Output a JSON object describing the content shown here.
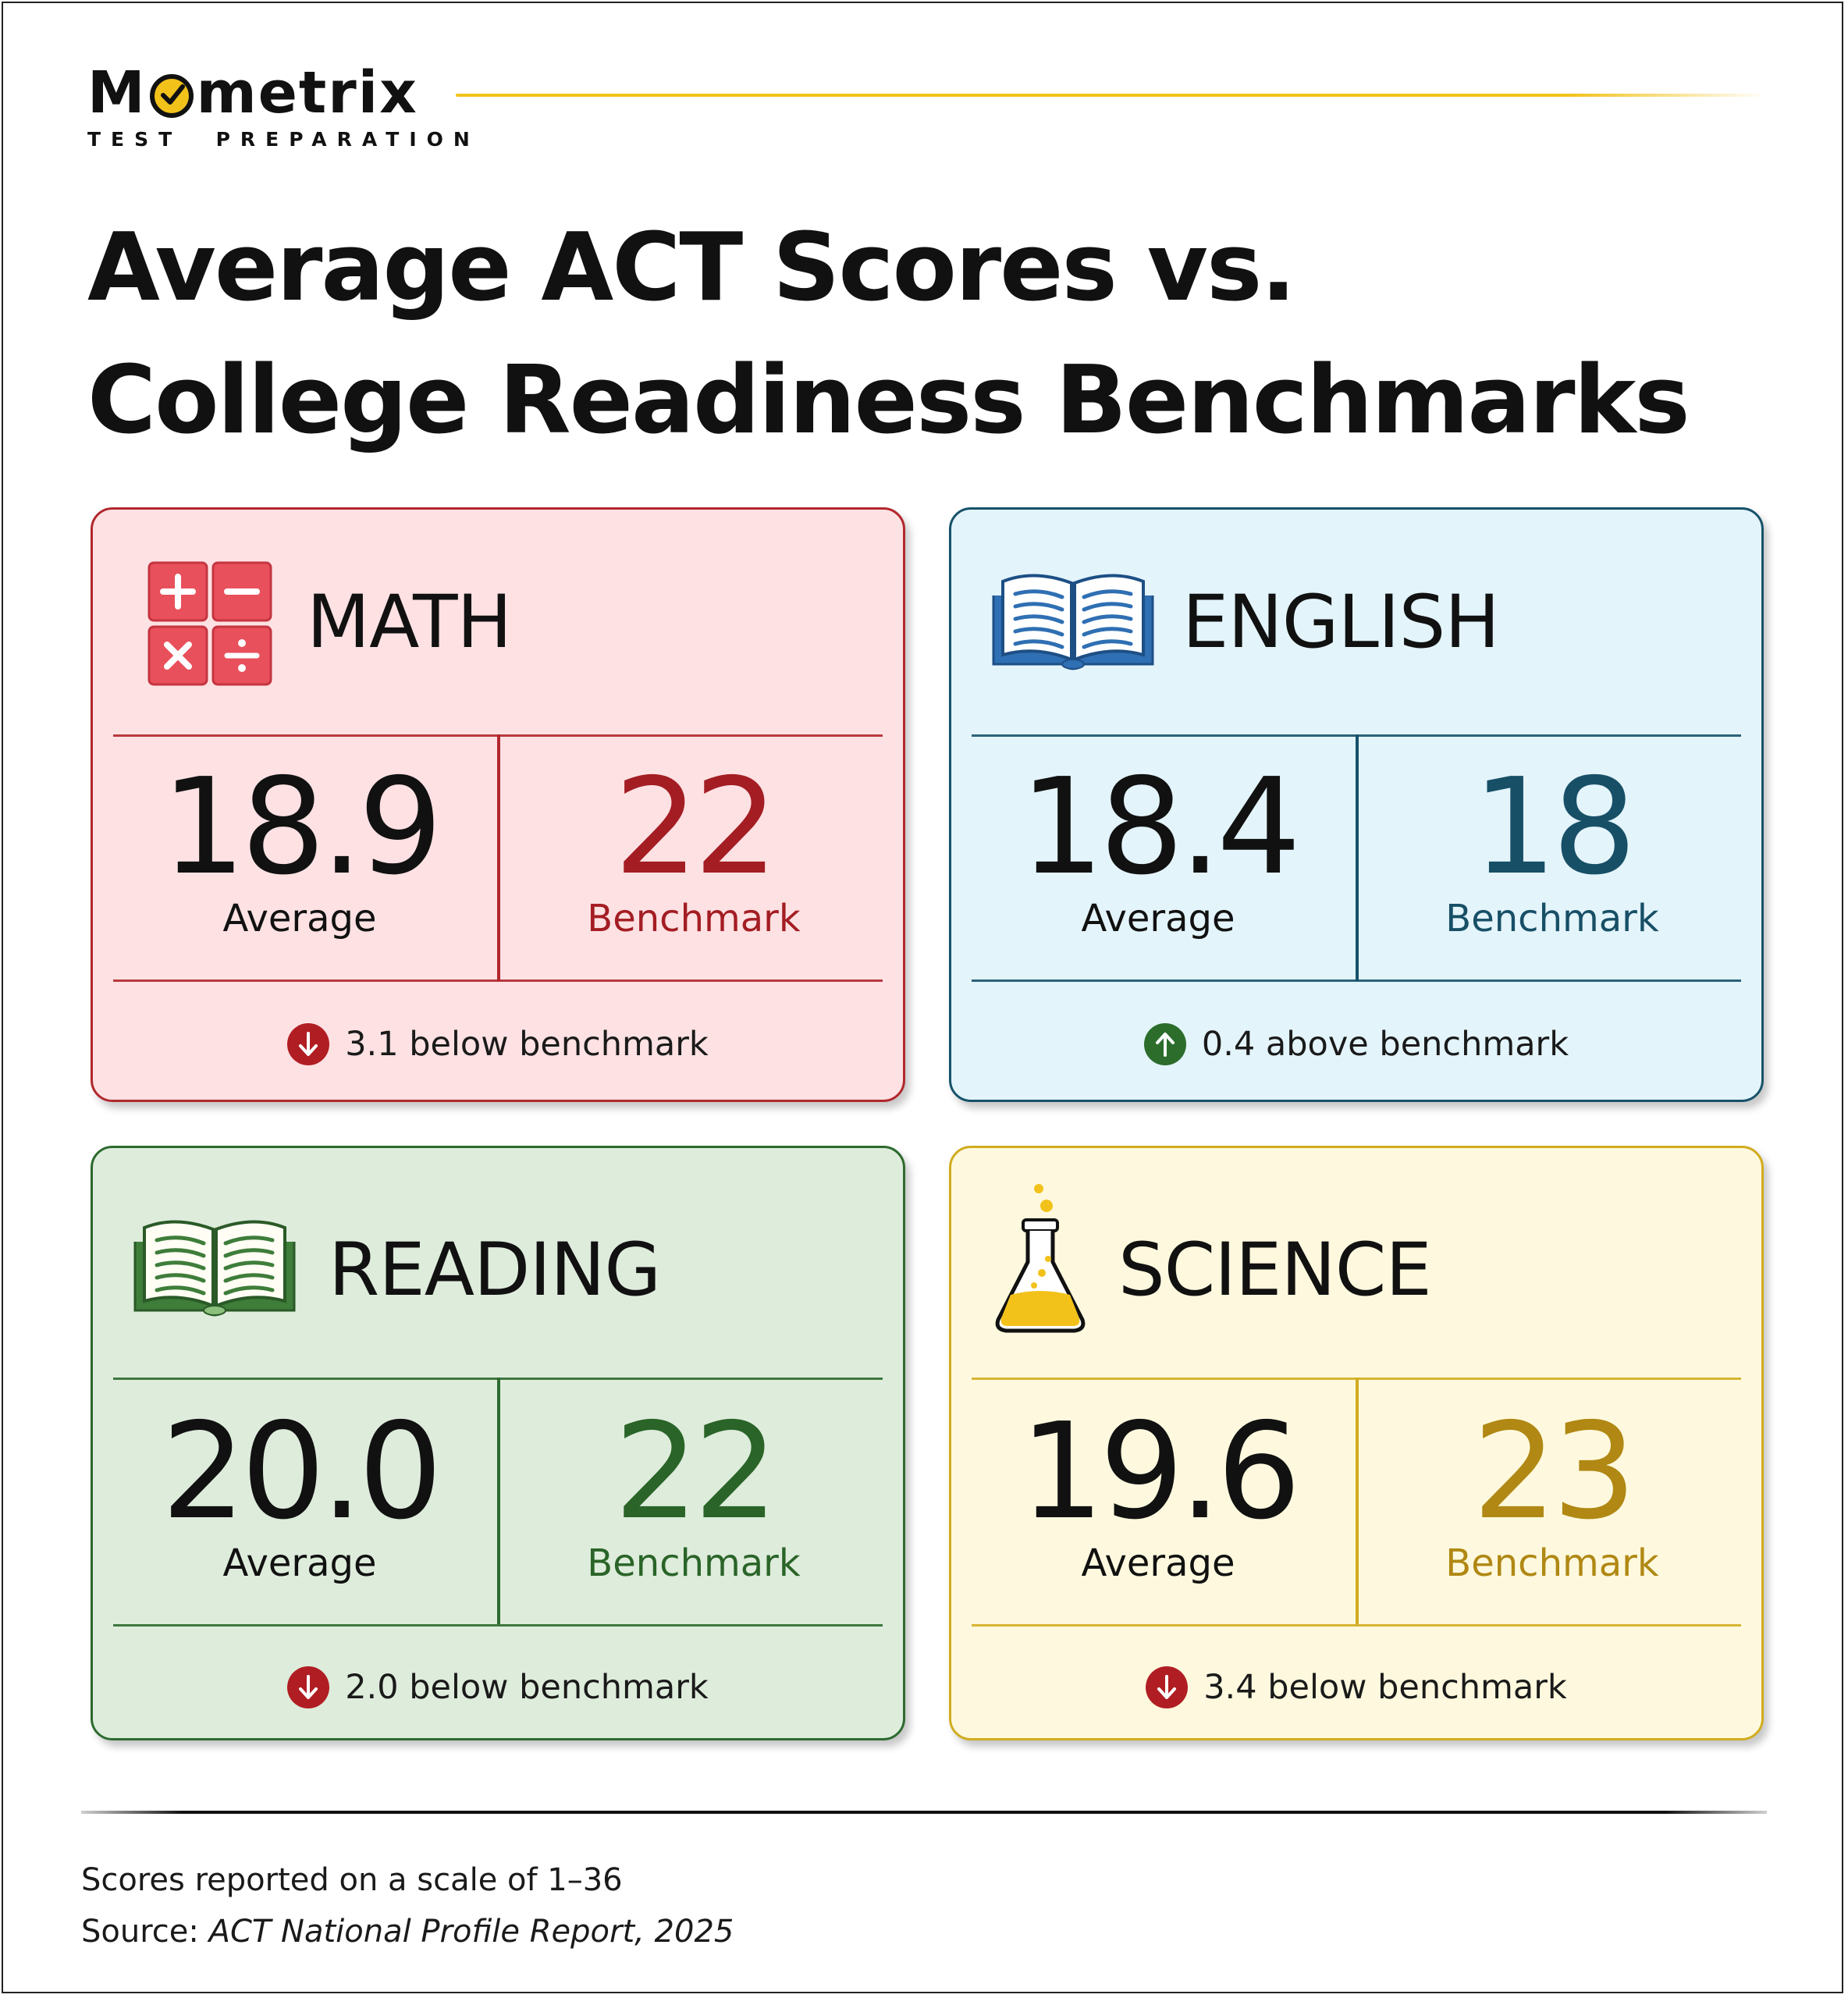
{
  "brand": {
    "name_before_o": "M",
    "name_after_o": "metrix",
    "tagline": "TEST  PREPARATION",
    "accent_color": "#f2c21b"
  },
  "title": {
    "line1": "Average ACT Scores vs.",
    "line2": "College Readiness Benchmarks"
  },
  "cards": [
    {
      "subject": "MATH",
      "icon": "calculator-operations-icon",
      "average": "18.9",
      "average_label": "Average",
      "benchmark": "22",
      "benchmark_label": "Benchmark",
      "difference": "3.1 below benchmark",
      "direction_icon": "arrow-down-icon",
      "colors": {
        "background": "#fde1e3",
        "accent": "#b1282d"
      }
    },
    {
      "subject": "ENGLISH",
      "icon": "open-book-icon",
      "average": "18.4",
      "average_label": "Average",
      "benchmark": "18",
      "benchmark_label": "Benchmark",
      "difference": "0.4 above benchmark",
      "direction_icon": "arrow-up-icon",
      "colors": {
        "background": "#e3f4fb",
        "accent": "#17526a"
      }
    },
    {
      "subject": "READING",
      "icon": "open-book-icon",
      "average": "20.0",
      "average_label": "Average",
      "benchmark": "22",
      "benchmark_label": "Benchmark",
      "difference": "2.0 below benchmark",
      "direction_icon": "arrow-down-icon",
      "colors": {
        "background": "#deecdc",
        "accent": "#2d6a2e"
      }
    },
    {
      "subject": "SCIENCE",
      "icon": "flask-icon",
      "average": "19.6",
      "average_label": "Average",
      "benchmark": "23",
      "benchmark_label": "Benchmark",
      "difference": "3.4 below benchmark",
      "direction_icon": "arrow-down-icon",
      "colors": {
        "background": "#fef9de",
        "accent": "#d1ac1f"
      }
    }
  ],
  "footer": {
    "scale_note": "Scores reported on a scale of 1–36",
    "source_prefix": "Source: ",
    "source_title": "ACT National Profile Report, 2025"
  }
}
